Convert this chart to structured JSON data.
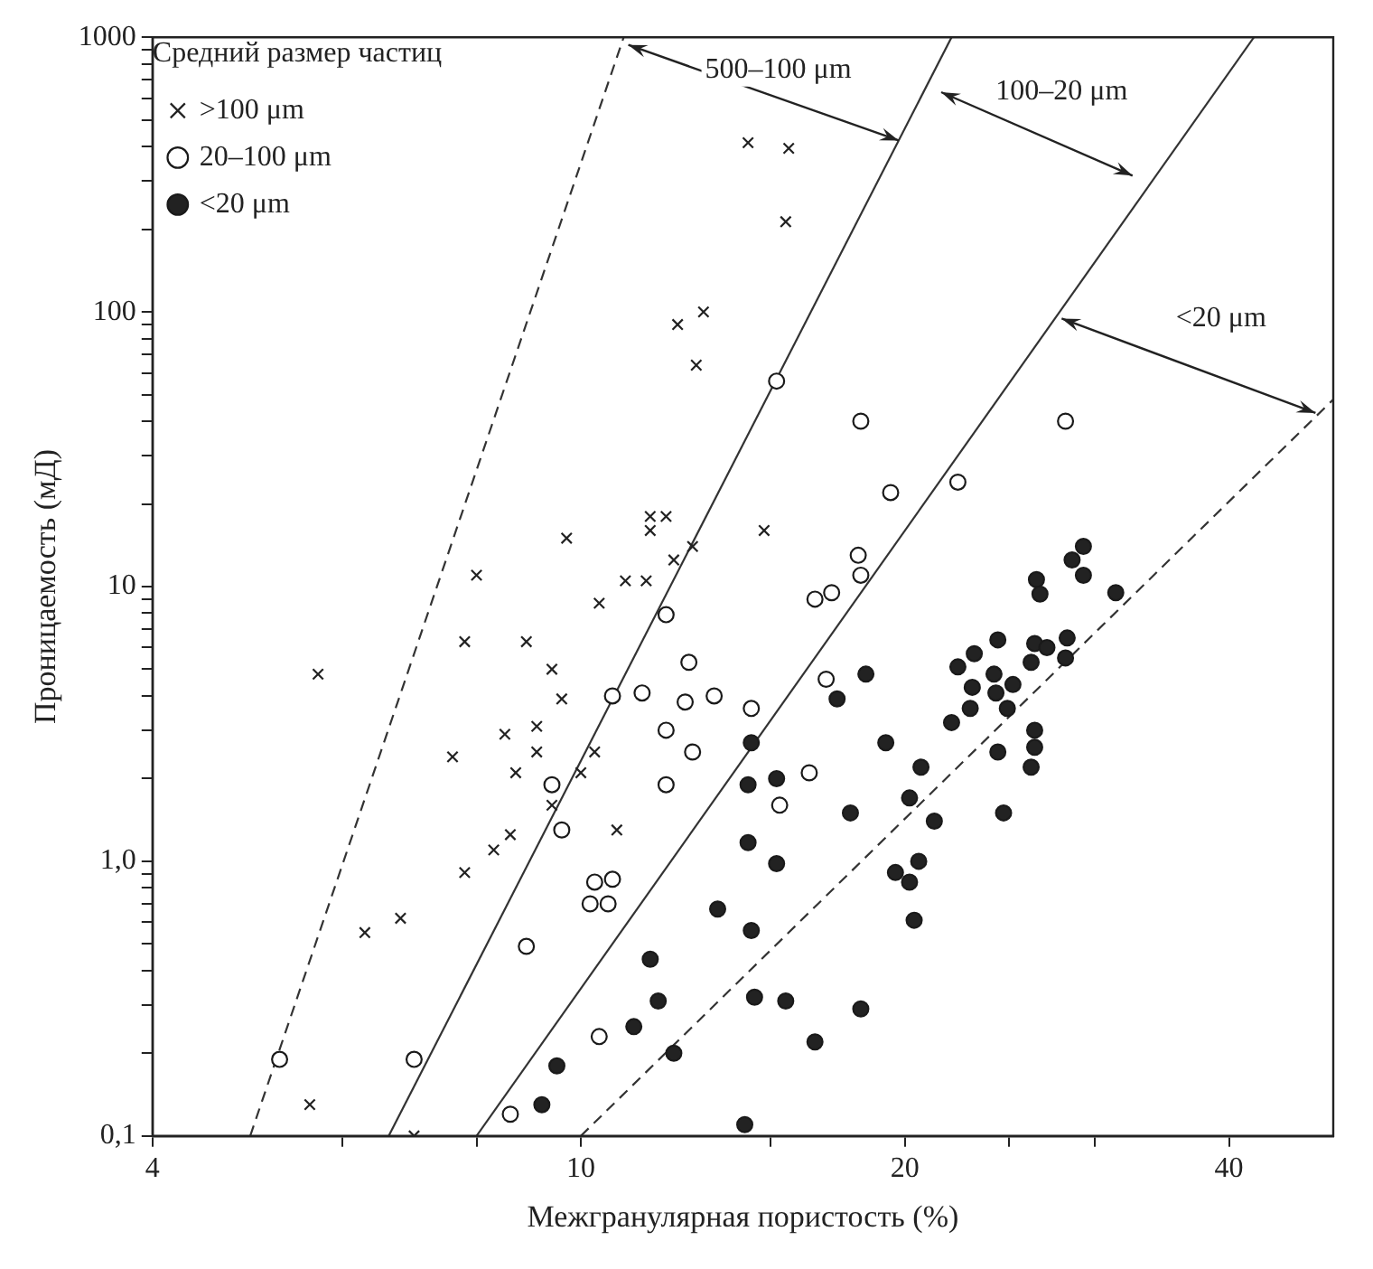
{
  "chart_data": {
    "type": "scatter",
    "xlabel": "Межгранулярная пористость (%)",
    "ylabel": "Проницаемость (мД)",
    "legend_title": "Средний размер частиц",
    "legend": "top left",
    "log": "xy",
    "xlim": [
      4,
      50
    ],
    "ylim": [
      0.1,
      1000
    ],
    "xticks": [
      4,
      {
        "value": 6,
        "label": null
      },
      {
        "value": 8,
        "label": null
      },
      10,
      {
        "value": 15,
        "label": null
      },
      20,
      {
        "value": 25,
        "label": null
      },
      {
        "value": 30,
        "label": null
      },
      40
    ],
    "yticks": [
      {
        "value": 0.1,
        "label": "0,1"
      },
      {
        "value": 0.2,
        "label": null
      },
      {
        "value": 0.3,
        "label": null
      },
      {
        "value": 0.4,
        "label": null
      },
      {
        "value": 0.5,
        "label": null
      },
      {
        "value": 0.6,
        "label": null
      },
      {
        "value": 0.7,
        "label": null
      },
      {
        "value": 0.8,
        "label": null
      },
      {
        "value": 0.9,
        "label": null
      },
      {
        "value": 1,
        "label": "1,0"
      },
      {
        "value": 2,
        "label": null
      },
      {
        "value": 3,
        "label": null
      },
      {
        "value": 4,
        "label": null
      },
      {
        "value": 5,
        "label": null
      },
      {
        "value": 6,
        "label": null
      },
      {
        "value": 7,
        "label": null
      },
      {
        "value": 8,
        "label": null
      },
      {
        "value": 9,
        "label": null
      },
      10,
      {
        "value": 20,
        "label": null
      },
      {
        "value": 30,
        "label": null
      },
      {
        "value": 40,
        "label": null
      },
      {
        "value": 50,
        "label": null
      },
      {
        "value": 60,
        "label": null
      },
      {
        "value": 70,
        "label": null
      },
      {
        "value": 80,
        "label": null
      },
      {
        "value": 90,
        "label": null
      },
      100,
      {
        "value": 200,
        "label": null
      },
      {
        "value": 300,
        "label": null
      },
      {
        "value": 400,
        "label": null
      },
      {
        "value": 500,
        "label": null
      },
      {
        "value": 600,
        "label": null
      },
      {
        "value": 700,
        "label": null
      },
      {
        "value": 800,
        "label": null
      },
      {
        "value": 900,
        "label": null
      },
      1000
    ],
    "annotations": [
      "500–100 μm",
      "100–20 μm",
      "<20 μm"
    ],
    "series": [
      {
        "name": ">100 μm",
        "color": "#222222",
        "marker": "cross",
        "x": [
          14.3,
          15.6,
          15.5,
          13.0,
          12.3,
          12.8,
          11.6,
          12.0,
          11.6,
          9.7,
          12.2,
          12.7,
          8.0,
          11.0,
          11.5,
          14.8,
          10.4,
          5.7,
          7.8,
          8.9,
          9.4,
          9.6,
          8.5,
          9.1,
          7.6,
          8.7,
          9.1,
          10.0,
          10.3,
          9.4,
          10.8,
          8.3,
          8.6,
          7.8,
          6.3,
          6.8,
          5.6,
          7.0
        ],
        "values": [
          413,
          394,
          213,
          100,
          90,
          64,
          18,
          18,
          16,
          15,
          12.5,
          14,
          11,
          10.5,
          10.5,
          16,
          8.7,
          4.8,
          6.3,
          6.3,
          5.0,
          3.9,
          2.9,
          3.1,
          2.4,
          2.1,
          2.5,
          2.1,
          2.5,
          1.6,
          1.3,
          1.1,
          1.25,
          0.91,
          0.55,
          0.62,
          0.13,
          0.1
        ]
      },
      {
        "name": "20–100 μm",
        "color": "#ffffff",
        "marker": "circle",
        "x": [
          15.2,
          18.2,
          19.4,
          22.4,
          28.2,
          18.1,
          18.2,
          12.0,
          12.6,
          10.7,
          11.4,
          12.5,
          13.3,
          14.4,
          12.0,
          12.7,
          12.0,
          9.4,
          9.6,
          10.3,
          10.7,
          10.2,
          10.6,
          8.9,
          10.4,
          5.25,
          7.0,
          8.6,
          16.5,
          17.1,
          16.9,
          16.3,
          15.3
        ],
        "values": [
          56,
          40,
          22,
          24,
          40,
          13,
          11,
          7.9,
          5.3,
          4.0,
          4.1,
          3.8,
          4.0,
          3.6,
          3.0,
          2.5,
          1.9,
          1.9,
          1.3,
          0.84,
          0.86,
          0.7,
          0.7,
          0.49,
          0.23,
          0.19,
          0.19,
          0.12,
          9.0,
          9.5,
          4.6,
          2.1,
          1.6
        ]
      },
      {
        "name": "<20 μm",
        "color": "#222222",
        "marker": "circle",
        "x": [
          29.3,
          28.6,
          29.3,
          26.5,
          26.7,
          31.4,
          18.4,
          17.3,
          14.4,
          14.3,
          15.2,
          14.3,
          15.2,
          13.4,
          14.4,
          14.5,
          15.5,
          18.2,
          16.5,
          14.2,
          11.6,
          11.8,
          11.2,
          12.2,
          9.5,
          9.2,
          17.8,
          19.2,
          20.7,
          20.2,
          21.3,
          19.6,
          20.2,
          20.6,
          20.4,
          22.1,
          22.4,
          23.2,
          24.4,
          24.2,
          23.1,
          24.3,
          25.2,
          24.9,
          23.0,
          24.4,
          26.4,
          27.1,
          28.3,
          26.2,
          28.2,
          26.4,
          26.4,
          26.2,
          24.7
        ],
        "values": [
          14,
          12.5,
          11,
          10.6,
          9.4,
          9.5,
          4.8,
          3.9,
          2.7,
          1.9,
          2.0,
          1.17,
          0.98,
          0.67,
          0.56,
          0.32,
          0.31,
          0.29,
          0.22,
          0.11,
          0.44,
          0.31,
          0.25,
          0.2,
          0.18,
          0.13,
          1.5,
          2.7,
          2.2,
          1.7,
          1.4,
          0.91,
          0.84,
          1.0,
          0.61,
          3.2,
          5.1,
          5.7,
          6.4,
          4.8,
          4.3,
          4.1,
          4.4,
          3.6,
          3.6,
          2.5,
          6.2,
          6.0,
          6.5,
          5.3,
          5.5,
          3.0,
          2.6,
          2.2,
          1.5
        ]
      },
      {
        "type": "line",
        "color": "#333333",
        "line_style": "dashed",
        "marker": "none",
        "x": [
          4.93,
          10.96
        ],
        "values": [
          0.1,
          1000
        ]
      },
      {
        "type": "line",
        "color": "#333333",
        "line_style": "solid",
        "marker": "none",
        "x": [
          6.63,
          22.1
        ],
        "values": [
          0.1,
          1000
        ]
      },
      {
        "type": "line",
        "color": "#333333",
        "line_style": "solid",
        "marker": "none",
        "x": [
          8.0,
          42.2
        ],
        "values": [
          0.1,
          1000
        ]
      },
      {
        "type": "line",
        "color": "#333333",
        "line_style": "dashed",
        "marker": "none",
        "x": [
          10,
          50
        ],
        "values": [
          0.1,
          48
        ]
      }
    ]
  }
}
